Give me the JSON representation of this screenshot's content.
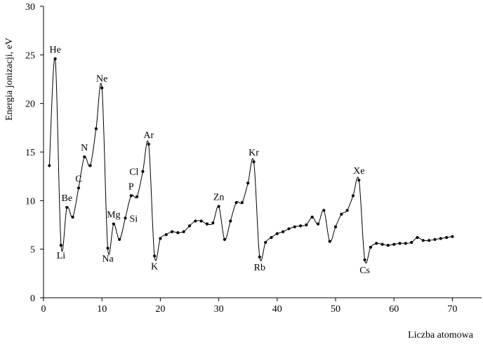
{
  "chart_data": {
    "type": "line",
    "title": "",
    "xlabel": "Liczba atomowa",
    "ylabel": "Energia jonizacji, eV",
    "xlim": [
      0,
      75
    ],
    "ylim": [
      0,
      30
    ],
    "xticks": [
      0,
      10,
      20,
      30,
      40,
      50,
      60,
      70
    ],
    "yticks": [
      0,
      5,
      10,
      15,
      20,
      25,
      30
    ],
    "grid": false,
    "legend": "none",
    "series": [
      {
        "x": [
          1,
          2,
          3,
          4,
          5,
          6,
          7,
          8,
          9,
          10,
          11,
          12,
          13,
          14,
          15,
          16,
          17,
          18,
          19,
          20,
          21,
          22,
          23,
          24,
          25,
          26,
          27,
          28,
          29,
          30,
          31,
          32,
          33,
          34,
          35,
          36,
          37,
          38,
          39,
          40,
          41,
          42,
          43,
          44,
          45,
          46,
          47,
          48,
          49,
          50,
          51,
          52,
          53,
          54,
          55,
          56,
          57,
          58,
          59,
          60,
          61,
          62,
          63,
          64,
          65,
          66,
          67,
          68,
          69,
          70
        ],
        "y": [
          13.6,
          24.6,
          5.4,
          9.3,
          8.3,
          11.3,
          14.5,
          13.6,
          17.4,
          21.6,
          5.1,
          7.6,
          6.0,
          8.2,
          10.5,
          10.4,
          13.0,
          15.8,
          4.3,
          6.1,
          6.5,
          6.8,
          6.7,
          6.8,
          7.4,
          7.9,
          7.9,
          7.6,
          7.7,
          9.4,
          6.0,
          7.9,
          9.8,
          9.8,
          11.8,
          14.0,
          4.2,
          5.7,
          6.2,
          6.6,
          6.8,
          7.1,
          7.3,
          7.4,
          7.5,
          8.3,
          7.6,
          9.0,
          5.8,
          7.3,
          8.6,
          9.0,
          10.5,
          12.1,
          3.9,
          5.2,
          5.6,
          5.5,
          5.4,
          5.5,
          5.6,
          5.6,
          5.7,
          6.2,
          5.9,
          5.9,
          6.0,
          6.1,
          6.2,
          6.3
        ]
      }
    ],
    "annotations": [
      {
        "text": "He",
        "x": 2,
        "y": 24.6,
        "pos": "above"
      },
      {
        "text": "Li",
        "x": 3,
        "y": 5.4,
        "pos": "below"
      },
      {
        "text": "Be",
        "x": 4,
        "y": 9.3,
        "pos": "above"
      },
      {
        "text": "C",
        "x": 6,
        "y": 11.3,
        "pos": "above"
      },
      {
        "text": "N",
        "x": 7,
        "y": 14.5,
        "pos": "above"
      },
      {
        "text": "Ne",
        "x": 10,
        "y": 21.6,
        "pos": "above"
      },
      {
        "text": "Na",
        "x": 11,
        "y": 5.1,
        "pos": "below"
      },
      {
        "text": "Mg",
        "x": 12,
        "y": 7.6,
        "pos": "above"
      },
      {
        "text": "Si",
        "x": 14,
        "y": 8.2,
        "pos": "right"
      },
      {
        "text": "P",
        "x": 15,
        "y": 10.5,
        "pos": "above"
      },
      {
        "text": "Cl",
        "x": 17,
        "y": 13.0,
        "pos": "left"
      },
      {
        "text": "Ar",
        "x": 18,
        "y": 15.8,
        "pos": "above"
      },
      {
        "text": "K",
        "x": 19,
        "y": 4.3,
        "pos": "below"
      },
      {
        "text": "Zn",
        "x": 30,
        "y": 9.4,
        "pos": "above"
      },
      {
        "text": "Kr",
        "x": 36,
        "y": 14.0,
        "pos": "above"
      },
      {
        "text": "Rb",
        "x": 37,
        "y": 4.2,
        "pos": "below"
      },
      {
        "text": "Xe",
        "x": 54,
        "y": 12.1,
        "pos": "above"
      },
      {
        "text": "Cs",
        "x": 55,
        "y": 3.9,
        "pos": "below"
      }
    ]
  }
}
